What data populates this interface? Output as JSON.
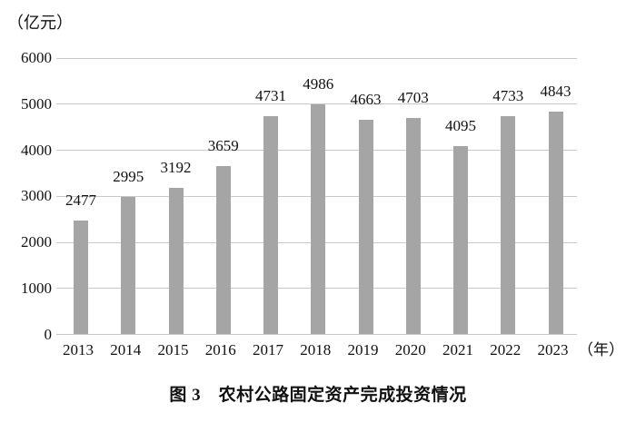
{
  "chart_data": {
    "type": "bar",
    "categories": [
      "2013",
      "2014",
      "2015",
      "2016",
      "2017",
      "2018",
      "2019",
      "2020",
      "2021",
      "2022",
      "2023"
    ],
    "values": [
      2477,
      2995,
      3192,
      3659,
      4731,
      4986,
      4663,
      4703,
      4095,
      4733,
      4843
    ],
    "title": "图 3　农村公路固定资产完成投资情况",
    "xlabel": "（年）",
    "ylabel": "（亿元）",
    "ylim": [
      0,
      6000
    ],
    "ytick_step": 1000,
    "yticks": [
      "0",
      "1000",
      "2000",
      "3000",
      "4000",
      "5000",
      "6000"
    ],
    "grid": true,
    "legend": false,
    "bar_color": "#a5a5a5",
    "gridline_color": "#c9c9c9",
    "text_color": "#111111"
  }
}
